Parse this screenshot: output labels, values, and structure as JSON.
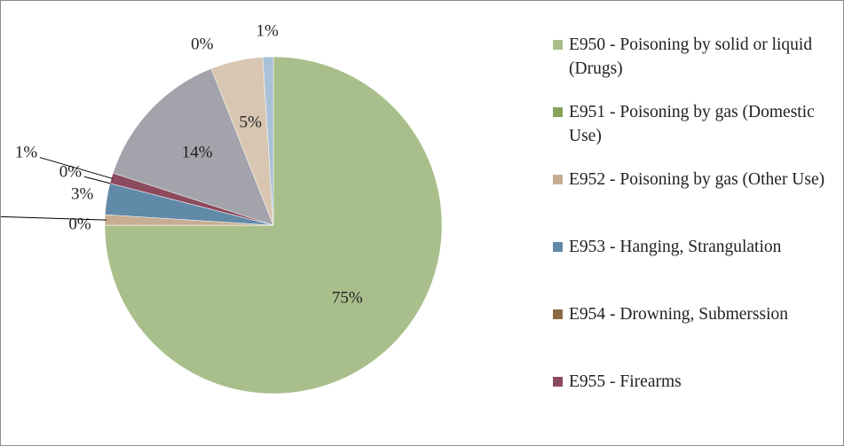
{
  "chart_data": {
    "type": "pie",
    "categories": [
      "E950 - Poisoning by solid or liquid (Drugs)",
      "E951 - Poisoning by gas (Domestic Use)",
      "E952 - Poisoning by gas (Other Use)",
      "E953 - Hanging, Strangulation",
      "E954 - Drowning, Submerssion",
      "E955 - Firearms",
      null,
      null,
      null,
      null
    ],
    "values": [
      75,
      0,
      1,
      3,
      0,
      1,
      14,
      0,
      5,
      1
    ],
    "value_labels": [
      "75%",
      "0%",
      "1%",
      "3%",
      "0%",
      "1%",
      "14%",
      "0%",
      "5%",
      "1%"
    ],
    "colors": [
      "#a9bf8b",
      "#86a35a",
      "#c7ad92",
      "#6189a8",
      "#8c6a42",
      "#8c4a5e",
      "#a3a3ab",
      "#b5b57a",
      "#d8c6b3",
      "#a9c2d8"
    ],
    "direction": "clockwise",
    "start_angle": 0
  }
}
